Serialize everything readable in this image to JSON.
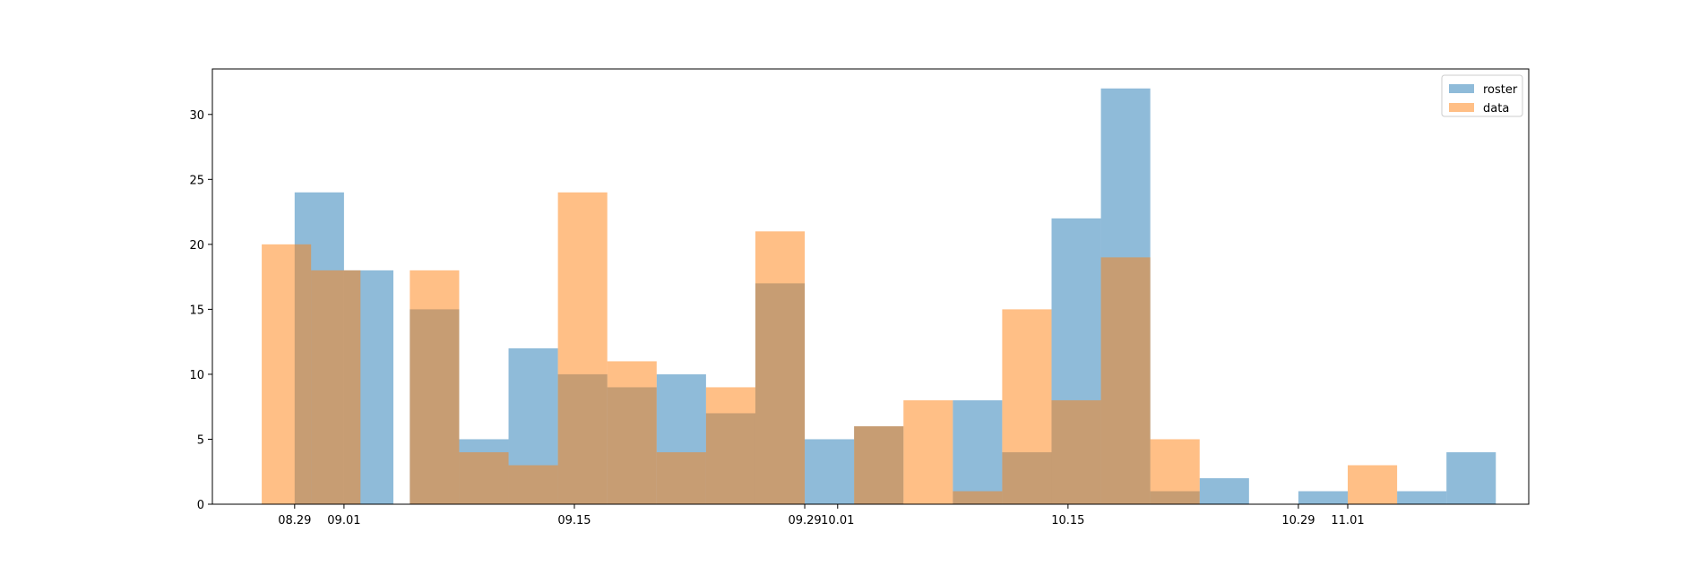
{
  "chart_data": {
    "type": "histogram",
    "title": "",
    "xlabel": "",
    "ylabel": "",
    "grid": false,
    "legend_position": "top-right",
    "ylim": [
      0,
      33.5
    ],
    "xlim": [
      "08.24",
      "11.12"
    ],
    "x_ticks": [
      "08.29",
      "09.01",
      "09.15",
      "09.29",
      "10.01",
      "10.15",
      "10.29",
      "11.01"
    ],
    "y_ticks": [
      0,
      5,
      10,
      15,
      20,
      25,
      30
    ],
    "series": [
      {
        "name": "roster",
        "color": "#1f77b4",
        "opacity": 0.5,
        "bins": [
          {
            "start": "08.29",
            "end": "09.01",
            "count": 24
          },
          {
            "start": "09.01",
            "end": "09.04",
            "count": 18
          },
          {
            "start": "09.04",
            "end": "09.05",
            "count": 0
          },
          {
            "start": "09.05",
            "end": "09.08",
            "count": 15
          },
          {
            "start": "09.08",
            "end": "09.11",
            "count": 5
          },
          {
            "start": "09.11",
            "end": "09.14",
            "count": 12
          },
          {
            "start": "09.14",
            "end": "09.17",
            "count": 10
          },
          {
            "start": "09.17",
            "end": "09.20",
            "count": 9
          },
          {
            "start": "09.20",
            "end": "09.23",
            "count": 10
          },
          {
            "start": "09.23",
            "end": "09.26",
            "count": 7
          },
          {
            "start": "09.26",
            "end": "09.29",
            "count": 17
          },
          {
            "start": "09.29",
            "end": "10.02",
            "count": 5
          },
          {
            "start": "10.02",
            "end": "10.05",
            "count": 6
          },
          {
            "start": "10.05",
            "end": "10.08",
            "count": 0
          },
          {
            "start": "10.08",
            "end": "10.11",
            "count": 8
          },
          {
            "start": "10.11",
            "end": "10.14",
            "count": 4
          },
          {
            "start": "10.14",
            "end": "10.17",
            "count": 22
          },
          {
            "start": "10.17",
            "end": "10.20",
            "count": 32
          },
          {
            "start": "10.20",
            "end": "10.23",
            "count": 1
          },
          {
            "start": "10.23",
            "end": "10.26",
            "count": 2
          },
          {
            "start": "10.26",
            "end": "10.29",
            "count": 0
          },
          {
            "start": "10.29",
            "end": "11.01",
            "count": 1
          },
          {
            "start": "11.01",
            "end": "11.04",
            "count": 0
          },
          {
            "start": "11.04",
            "end": "11.07",
            "count": 1
          },
          {
            "start": "11.07",
            "end": "11.10",
            "count": 4
          }
        ]
      },
      {
        "name": "data",
        "color": "#ff7f0e",
        "opacity": 0.5,
        "bins": [
          {
            "start": "08.27",
            "end": "08.30",
            "count": 20
          },
          {
            "start": "08.30",
            "end": "09.02",
            "count": 18
          },
          {
            "start": "09.02",
            "end": "09.05",
            "count": 0
          },
          {
            "start": "09.05",
            "end": "09.08",
            "count": 18
          },
          {
            "start": "09.08",
            "end": "09.11",
            "count": 4
          },
          {
            "start": "09.11",
            "end": "09.14",
            "count": 3
          },
          {
            "start": "09.14",
            "end": "09.17",
            "count": 24
          },
          {
            "start": "09.17",
            "end": "09.20",
            "count": 11
          },
          {
            "start": "09.20",
            "end": "09.23",
            "count": 4
          },
          {
            "start": "09.23",
            "end": "09.26",
            "count": 9
          },
          {
            "start": "09.26",
            "end": "09.29",
            "count": 21
          },
          {
            "start": "09.29",
            "end": "10.02",
            "count": 0
          },
          {
            "start": "10.02",
            "end": "10.05",
            "count": 6
          },
          {
            "start": "10.05",
            "end": "10.08",
            "count": 8
          },
          {
            "start": "10.08",
            "end": "10.11",
            "count": 1
          },
          {
            "start": "10.11",
            "end": "10.14",
            "count": 15
          },
          {
            "start": "10.14",
            "end": "10.17",
            "count": 8
          },
          {
            "start": "10.17",
            "end": "10.20",
            "count": 19
          },
          {
            "start": "10.20",
            "end": "10.23",
            "count": 5
          },
          {
            "start": "10.29",
            "end": "11.01",
            "count": 0
          },
          {
            "start": "11.01",
            "end": "11.04",
            "count": 3
          }
        ]
      }
    ]
  }
}
